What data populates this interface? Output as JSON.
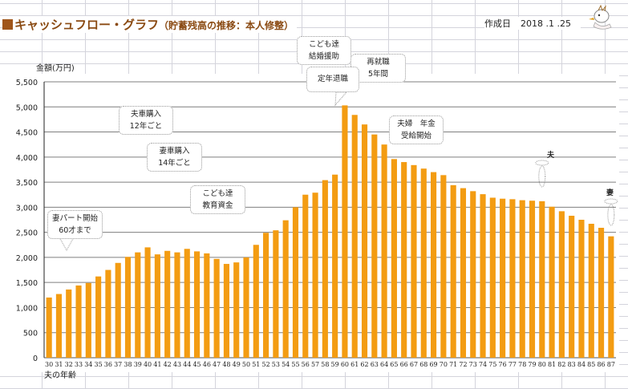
{
  "header": {
    "title_main": "キャッシュフロー・グラフ",
    "title_sub": "（貯蓄残高の推移：本人修整）",
    "date_label": "作成日",
    "date_value": "2018 .1 .25"
  },
  "colors": {
    "bar": "#f39c12",
    "title": "#8a4a12",
    "grid": "#7f7f7f"
  },
  "annotations": [
    {
      "id": "wife-part",
      "lines": [
        "妻パート開始",
        "60才まで"
      ]
    },
    {
      "id": "husband-car",
      "lines": [
        "夫車購入",
        "12年ごと"
      ]
    },
    {
      "id": "wife-car",
      "lines": [
        "妻車購入",
        "14年ごと"
      ]
    },
    {
      "id": "education",
      "lines": [
        "こども達",
        "教育資金"
      ]
    },
    {
      "id": "marriage",
      "lines": [
        "こども達",
        "結婚援助"
      ]
    },
    {
      "id": "retire",
      "lines": [
        "定年退職"
      ]
    },
    {
      "id": "reemploy",
      "lines": [
        "再就職",
        "5年間"
      ]
    },
    {
      "id": "pension",
      "lines": [
        "夫婦　年金",
        "受給開始"
      ]
    }
  ],
  "markers": [
    {
      "label": "夫",
      "icon": "ghost-icon",
      "age": 80
    },
    {
      "label": "妻",
      "icon": "ghost-icon",
      "age": 87
    }
  ],
  "chart_data": {
    "type": "bar",
    "title": "キャッシュフロー・グラフ（貯蓄残高の推移：本人修整）",
    "ylabel": "金額(万円)",
    "xlabel": "夫の年齢",
    "ylim": [
      0,
      5500
    ],
    "yticks": [
      0,
      500,
      1000,
      1500,
      2000,
      2500,
      3000,
      3500,
      4000,
      4500,
      5000,
      5500
    ],
    "ytick_labels": [
      "0",
      "500",
      "1,000",
      "1,500",
      "2,000",
      "2,500",
      "3,000",
      "3,500",
      "4,000",
      "4,500",
      "5,000",
      "5,500"
    ],
    "grid": true,
    "categories": [
      "30",
      "31",
      "32",
      "33",
      "34",
      "35",
      "36",
      "37",
      "38",
      "39",
      "40",
      "41",
      "42",
      "43",
      "44",
      "45",
      "46",
      "47",
      "48",
      "49",
      "50",
      "51",
      "52",
      "53",
      "54",
      "55",
      "56",
      "57",
      "58",
      "59",
      "60",
      "61",
      "62",
      "63",
      "64",
      "65",
      "66",
      "67",
      "68",
      "69",
      "70",
      "71",
      "72",
      "73",
      "74",
      "75",
      "76",
      "77",
      "78",
      "79",
      "80",
      "81",
      "82",
      "83",
      "84",
      "85",
      "86",
      "87"
    ],
    "values": [
      1200,
      1270,
      1360,
      1440,
      1490,
      1620,
      1750,
      1890,
      2010,
      2100,
      2200,
      2060,
      2130,
      2100,
      2170,
      2120,
      2080,
      1970,
      1870,
      1900,
      2000,
      2250,
      2490,
      2540,
      2740,
      3000,
      3250,
      3290,
      3540,
      3650,
      5030,
      4840,
      4650,
      4450,
      4250,
      3960,
      3900,
      3840,
      3770,
      3700,
      3640,
      3440,
      3380,
      3320,
      3260,
      3190,
      3170,
      3160,
      3140,
      3130,
      3120,
      3010,
      2920,
      2830,
      2750,
      2670,
      2590,
      2420
    ]
  }
}
